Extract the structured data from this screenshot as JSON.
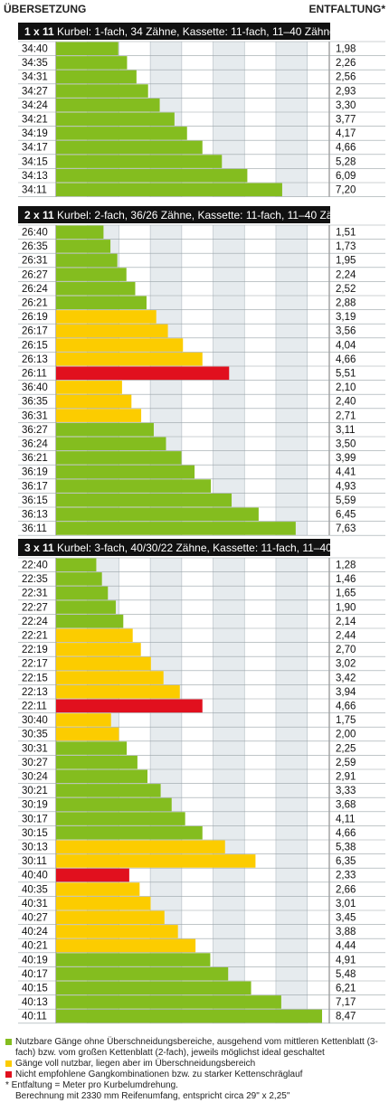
{
  "chart_data": {
    "type": "bar",
    "orientation": "horizontal",
    "xlabel": "ÜBERSETZUNG",
    "ylabel": "ENTFALTUNG*",
    "xlim": [
      0,
      8.7
    ],
    "grid": true,
    "colors": {
      "green": "#84bd1f",
      "yellow": "#fccc00",
      "red": "#e1101e",
      "header_bg": "#111111",
      "column_bg": "#e6ebee"
    },
    "sections": [
      {
        "title_bold": "1 x 11",
        "title": "Kurbel: 1-fach, 34 Zähne, Kassette: 11-fach, 11–40 Zähne",
        "rows": [
          {
            "label": "34:40",
            "value": 1.98,
            "display": "1,98",
            "color": "green"
          },
          {
            "label": "34:35",
            "value": 2.26,
            "display": "2,26",
            "color": "green"
          },
          {
            "label": "34:31",
            "value": 2.56,
            "display": "2,56",
            "color": "green"
          },
          {
            "label": "34:27",
            "value": 2.93,
            "display": "2,93",
            "color": "green"
          },
          {
            "label": "34:24",
            "value": 3.3,
            "display": "3,30",
            "color": "green"
          },
          {
            "label": "34:21",
            "value": 3.77,
            "display": "3,77",
            "color": "green"
          },
          {
            "label": "34:19",
            "value": 4.17,
            "display": "4,17",
            "color": "green"
          },
          {
            "label": "34:17",
            "value": 4.66,
            "display": "4,66",
            "color": "green"
          },
          {
            "label": "34:15",
            "value": 5.28,
            "display": "5,28",
            "color": "green"
          },
          {
            "label": "34:13",
            "value": 6.09,
            "display": "6,09",
            "color": "green"
          },
          {
            "label": "34:11",
            "value": 7.2,
            "display": "7,20",
            "color": "green"
          }
        ]
      },
      {
        "title_bold": "2 x 11",
        "title": "Kurbel: 2-fach, 36/26 Zähne, Kassette: 11-fach, 11–40 Zähne",
        "rows": [
          {
            "label": "26:40",
            "value": 1.51,
            "display": "1,51",
            "color": "green"
          },
          {
            "label": "26:35",
            "value": 1.73,
            "display": "1,73",
            "color": "green"
          },
          {
            "label": "26:31",
            "value": 1.95,
            "display": "1,95",
            "color": "green"
          },
          {
            "label": "26:27",
            "value": 2.24,
            "display": "2,24",
            "color": "green"
          },
          {
            "label": "26:24",
            "value": 2.52,
            "display": "2,52",
            "color": "green"
          },
          {
            "label": "26:21",
            "value": 2.88,
            "display": "2,88",
            "color": "green"
          },
          {
            "label": "26:19",
            "value": 3.19,
            "display": "3,19",
            "color": "yellow"
          },
          {
            "label": "26:17",
            "value": 3.56,
            "display": "3,56",
            "color": "yellow"
          },
          {
            "label": "26:15",
            "value": 4.04,
            "display": "4,04",
            "color": "yellow"
          },
          {
            "label": "26:13",
            "value": 4.66,
            "display": "4,66",
            "color": "yellow"
          },
          {
            "label": "26:11",
            "value": 5.51,
            "display": "5,51",
            "color": "red"
          },
          {
            "label": "36:40",
            "value": 2.1,
            "display": "2,10",
            "color": "yellow"
          },
          {
            "label": "36:35",
            "value": 2.4,
            "display": "2,40",
            "color": "yellow"
          },
          {
            "label": "36:31",
            "value": 2.71,
            "display": "2,71",
            "color": "yellow"
          },
          {
            "label": "36:27",
            "value": 3.11,
            "display": "3,11",
            "color": "green"
          },
          {
            "label": "36:24",
            "value": 3.5,
            "display": "3,50",
            "color": "green"
          },
          {
            "label": "36:21",
            "value": 3.99,
            "display": "3,99",
            "color": "green"
          },
          {
            "label": "36:19",
            "value": 4.41,
            "display": "4,41",
            "color": "green"
          },
          {
            "label": "36:17",
            "value": 4.93,
            "display": "4,93",
            "color": "green"
          },
          {
            "label": "36:15",
            "value": 5.59,
            "display": "5,59",
            "color": "green"
          },
          {
            "label": "36:13",
            "value": 6.45,
            "display": "6,45",
            "color": "green"
          },
          {
            "label": "36:11",
            "value": 7.63,
            "display": "7,63",
            "color": "green"
          }
        ]
      },
      {
        "title_bold": "3 x 11",
        "title": "Kurbel: 3-fach, 40/30/22 Zähne, Kassette: 11-fach, 11–40 Zähne",
        "rows": [
          {
            "label": "22:40",
            "value": 1.28,
            "display": "1,28",
            "color": "green"
          },
          {
            "label": "22:35",
            "value": 1.46,
            "display": "1,46",
            "color": "green"
          },
          {
            "label": "22:31",
            "value": 1.65,
            "display": "1,65",
            "color": "green"
          },
          {
            "label": "22:27",
            "value": 1.9,
            "display": "1,90",
            "color": "green"
          },
          {
            "label": "22:24",
            "value": 2.14,
            "display": "2,14",
            "color": "green"
          },
          {
            "label": "22:21",
            "value": 2.44,
            "display": "2,44",
            "color": "yellow"
          },
          {
            "label": "22:19",
            "value": 2.7,
            "display": "2,70",
            "color": "yellow"
          },
          {
            "label": "22:17",
            "value": 3.02,
            "display": "3,02",
            "color": "yellow"
          },
          {
            "label": "22:15",
            "value": 3.42,
            "display": "3,42",
            "color": "yellow"
          },
          {
            "label": "22:13",
            "value": 3.94,
            "display": "3,94",
            "color": "yellow"
          },
          {
            "label": "22:11",
            "value": 4.66,
            "display": "4,66",
            "color": "red"
          },
          {
            "label": "30:40",
            "value": 1.75,
            "display": "1,75",
            "color": "yellow"
          },
          {
            "label": "30:35",
            "value": 2.0,
            "display": "2,00",
            "color": "yellow"
          },
          {
            "label": "30:31",
            "value": 2.25,
            "display": "2,25",
            "color": "green"
          },
          {
            "label": "30:27",
            "value": 2.59,
            "display": "2,59",
            "color": "green"
          },
          {
            "label": "30:24",
            "value": 2.91,
            "display": "2,91",
            "color": "green"
          },
          {
            "label": "30:21",
            "value": 3.33,
            "display": "3,33",
            "color": "green"
          },
          {
            "label": "30:19",
            "value": 3.68,
            "display": "3,68",
            "color": "green"
          },
          {
            "label": "30:17",
            "value": 4.11,
            "display": "4,11",
            "color": "green"
          },
          {
            "label": "30:15",
            "value": 4.66,
            "display": "4,66",
            "color": "green"
          },
          {
            "label": "30:13",
            "value": 5.38,
            "display": "5,38",
            "color": "yellow"
          },
          {
            "label": "30:11",
            "value": 6.35,
            "display": "6,35",
            "color": "yellow"
          },
          {
            "label": "40:40",
            "value": 2.33,
            "display": "2,33",
            "color": "red"
          },
          {
            "label": "40:35",
            "value": 2.66,
            "display": "2,66",
            "color": "yellow"
          },
          {
            "label": "40:31",
            "value": 3.01,
            "display": "3,01",
            "color": "yellow"
          },
          {
            "label": "40:27",
            "value": 3.45,
            "display": "3,45",
            "color": "yellow"
          },
          {
            "label": "40:24",
            "value": 3.88,
            "display": "3,88",
            "color": "yellow"
          },
          {
            "label": "40:21",
            "value": 4.44,
            "display": "4,44",
            "color": "yellow"
          },
          {
            "label": "40:19",
            "value": 4.91,
            "display": "4,91",
            "color": "green"
          },
          {
            "label": "40:17",
            "value": 5.48,
            "display": "5,48",
            "color": "green"
          },
          {
            "label": "40:15",
            "value": 6.21,
            "display": "6,21",
            "color": "green"
          },
          {
            "label": "40:13",
            "value": 7.17,
            "display": "7,17",
            "color": "green"
          },
          {
            "label": "40:11",
            "value": 8.47,
            "display": "8,47",
            "color": "green"
          }
        ]
      }
    ],
    "legend": [
      {
        "color": "green",
        "text": "Nutzbare Gänge ohne Überschneidungsbereiche, ausgehend vom mittleren Kettenblatt (3-fach) bzw. vom großen Kettenblatt (2-fach), jeweils möglichst ideal geschaltet"
      },
      {
        "color": "yellow",
        "text": "Gänge voll nutzbar, liegen aber im Überschneidungsbereich"
      },
      {
        "color": "red",
        "text": "Nicht empfohlene Gangkombinationen bzw. zu starker Kettenschräglauf"
      }
    ],
    "footnote": "* Entfaltung = Meter pro Kurbelumdrehung.",
    "footnote2": "Berechnung mit 2330 mm Reifenumfang, entspricht circa 29\" x 2,25\""
  }
}
